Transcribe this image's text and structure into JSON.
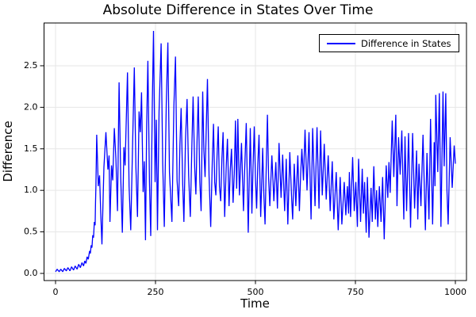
{
  "figure": {
    "background": "#ffffff",
    "title": "Absolute Difference in States Over Time"
  },
  "colors": {
    "line": "#0000ff",
    "grid": "#e6e6e6",
    "frame": "#000000",
    "tick_text": "#000000"
  },
  "legend": {
    "position": "top-right",
    "border_color": "#000000",
    "entries": [
      {
        "label": "Difference in States",
        "color": "#0000ff"
      }
    ]
  },
  "chart_data": {
    "type": "line",
    "title": "Absolute Difference in States Over Time",
    "xlabel": "Time",
    "ylabel": "Difference",
    "grid": true,
    "legend_position": "top-right",
    "xlim": [
      -28.8,
      1027.8
    ],
    "ylim": [
      -0.086,
      3.015
    ],
    "x_ticks": {
      "values": [
        0,
        250,
        500,
        750,
        1000
      ],
      "labels": [
        "0",
        "250",
        "500",
        "750",
        "1000"
      ]
    },
    "y_ticks": {
      "values": [
        0.0,
        0.5,
        1.0,
        1.5,
        2.0,
        2.5
      ],
      "labels": [
        "0.0",
        "0.5",
        "1.0",
        "1.5",
        "2.0",
        "2.5"
      ]
    },
    "series": [
      {
        "name": "Difference in States",
        "color": "#0000ff",
        "x": [
          0,
          4,
          9,
          13,
          18,
          22,
          27,
          31,
          36,
          40,
          45,
          49,
          54,
          58,
          62,
          66,
          70,
          73,
          76,
          79,
          82,
          85,
          87,
          89,
          91,
          93,
          95,
          97,
          99,
          100,
          101,
          103,
          107,
          110,
          113,
          116,
          121,
          126,
          131,
          134,
          136,
          140,
          143,
          147,
          151,
          155,
          159,
          163,
          167,
          171,
          174,
          180,
          184,
          188,
          193,
          197,
          201,
          205,
          209,
          212,
          215,
          219,
          222,
          225,
          228,
          231,
          235,
          238,
          242,
          245,
          249,
          252,
          255,
          259,
          264,
          268,
          272,
          277,
          281,
          285,
          291,
          296,
          300,
          304,
          308,
          311,
          314,
          318,
          321,
          325,
          329,
          333,
          337,
          341,
          344,
          348,
          351,
          354,
          357,
          361,
          364,
          368,
          371,
          374,
          380,
          384,
          388,
          392,
          395,
          398,
          401,
          404,
          407,
          410,
          413,
          416,
          419,
          423,
          427,
          430,
          434,
          437,
          440,
          444,
          447,
          450,
          453,
          456,
          460,
          465,
          470,
          473,
          477,
          482,
          487,
          491,
          494,
          497,
          500,
          503,
          506,
          509,
          513,
          516,
          518,
          521,
          524,
          527,
          530,
          533,
          536,
          541,
          546,
          551,
          555,
          559,
          564,
          568,
          573,
          577,
          581,
          586,
          590,
          593,
          597,
          601,
          606,
          610,
          613,
          616,
          620,
          624,
          629,
          634,
          639,
          643,
          649,
          654,
          659,
          663,
          667,
          672,
          677,
          682,
          687,
          692,
          696,
          702,
          707,
          712,
          716,
          722,
          726,
          730,
          733,
          735,
          738,
          743,
          747,
          751,
          755,
          758,
          763,
          767,
          770,
          773,
          777,
          780,
          784,
          789,
          792,
          796,
          800,
          803,
          806,
          810,
          814,
          818,
          822,
          827,
          831,
          834,
          837,
          842,
          846,
          851,
          854,
          858,
          862,
          866,
          871,
          874,
          878,
          883,
          888,
          893,
          898,
          903,
          906,
          909,
          914,
          919,
          925,
          929,
          934,
          938,
          943,
          947,
          949,
          951,
          956,
          960,
          964,
          969,
          972,
          976,
          979,
          982,
          987,
          992,
          997,
          1000
        ],
        "y": [
          0.02,
          0.05,
          0.02,
          0.05,
          0.02,
          0.06,
          0.03,
          0.07,
          0.03,
          0.08,
          0.04,
          0.09,
          0.05,
          0.11,
          0.07,
          0.13,
          0.09,
          0.15,
          0.12,
          0.2,
          0.17,
          0.27,
          0.24,
          0.34,
          0.31,
          0.46,
          0.43,
          0.62,
          0.58,
          0.85,
          1.05,
          1.67,
          1.05,
          1.18,
          0.72,
          0.35,
          1.28,
          1.7,
          1.25,
          1.42,
          0.62,
          1.3,
          1.12,
          1.75,
          1.38,
          0.75,
          2.3,
          1.15,
          0.49,
          1.52,
          1.3,
          2.42,
          1.05,
          0.52,
          1.62,
          2.48,
          1.28,
          0.68,
          1.95,
          1.7,
          2.18,
          0.98,
          1.35,
          0.4,
          1.8,
          2.56,
          1.1,
          0.45,
          2.05,
          2.92,
          1.1,
          1.85,
          0.52,
          1.95,
          2.77,
          1.32,
          0.56,
          2.05,
          2.78,
          1.22,
          0.62,
          2.02,
          2.61,
          1.12,
          0.81,
          1.55,
          1.99,
          1.08,
          0.62,
          1.6,
          2.1,
          1.18,
          0.68,
          1.55,
          2.13,
          1.28,
          0.95,
          1.6,
          2.13,
          1.1,
          0.75,
          2.19,
          1.48,
          1.16,
          2.34,
          1.18,
          0.56,
          1.35,
          1.8,
          1.1,
          0.94,
          1.42,
          1.77,
          1.05,
          0.87,
          1.38,
          1.7,
          0.68,
          1.3,
          1.62,
          0.81,
          1.25,
          1.5,
          0.85,
          1.2,
          1.84,
          1.02,
          1.86,
          0.94,
          1.57,
          0.75,
          1.25,
          1.81,
          0.49,
          1.75,
          0.72,
          1.3,
          1.77,
          1.15,
          0.78,
          1.32,
          1.67,
          0.68,
          1.15,
          1.51,
          0.95,
          0.59,
          1.28,
          1.91,
          1.15,
          0.81,
          1.42,
          0.87,
          1.34,
          0.78,
          1.57,
          0.91,
          1.43,
          0.75,
          1.38,
          0.59,
          1.46,
          0.95,
          0.65,
          1.32,
          0.81,
          1.42,
          0.75,
          1.2,
          1.5,
          1.12,
          1.73,
          1.0,
          1.7,
          0.65,
          1.75,
          0.81,
          1.76,
          0.78,
          1.72,
          0.94,
          1.56,
          0.89,
          1.42,
          0.75,
          1.35,
          0.65,
          1.22,
          0.52,
          1.16,
          0.59,
          1.1,
          0.7,
          1.05,
          0.72,
          1.22,
          0.68,
          1.4,
          0.75,
          1.1,
          0.56,
          1.38,
          0.62,
          1.26,
          0.72,
          1.1,
          0.49,
          1.16,
          0.43,
          1.03,
          0.62,
          1.29,
          0.65,
          1.0,
          0.56,
          1.05,
          0.62,
          1.16,
          0.41,
          1.3,
          0.91,
          1.34,
          0.97,
          1.84,
          1.16,
          1.91,
          0.81,
          1.64,
          1.19,
          1.72,
          0.65,
          1.65,
          0.75,
          1.69,
          0.55,
          1.69,
          0.78,
          1.48,
          0.65,
          1.32,
          0.81,
          1.67,
          0.52,
          1.45,
          0.65,
          1.86,
          0.59,
          1.58,
          1.05,
          2.15,
          1.22,
          2.17,
          0.56,
          2.19,
          1.29,
          2.17,
          1.0,
          0.59,
          1.64,
          1.03,
          1.54,
          1.32
        ]
      }
    ]
  }
}
